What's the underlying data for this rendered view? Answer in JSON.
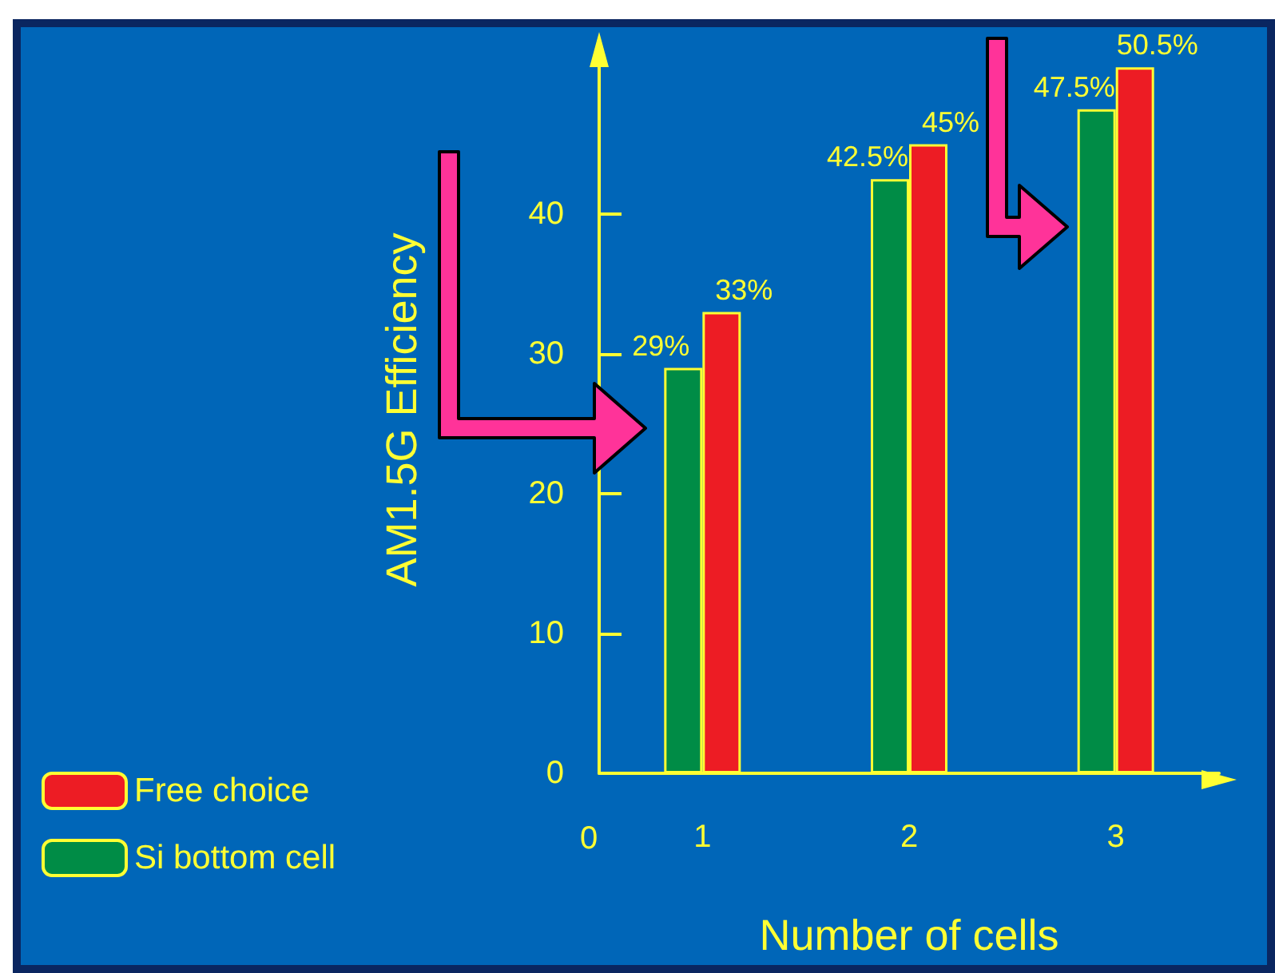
{
  "chart_data": {
    "type": "bar",
    "xlabel": "Number of cells",
    "ylabel": "AM1.5G Efficiency",
    "categories": [
      "1",
      "2",
      "3"
    ],
    "series": [
      {
        "name": "Si bottom cell",
        "color": "#008c46",
        "values": [
          29,
          42.5,
          47.5
        ],
        "value_labels": [
          "29%",
          "42.5%",
          "47.5%"
        ]
      },
      {
        "name": "Free choice",
        "color": "#ed1c24",
        "values": [
          33,
          45,
          50.5
        ],
        "value_labels": [
          "33%",
          "45%",
          "50.5%"
        ]
      }
    ],
    "ylim": [
      0,
      52
    ],
    "yticks": [
      0,
      10,
      20,
      30,
      40
    ],
    "grid": false,
    "legend": "bottom left",
    "annotations": [
      "0"
    ]
  }
}
